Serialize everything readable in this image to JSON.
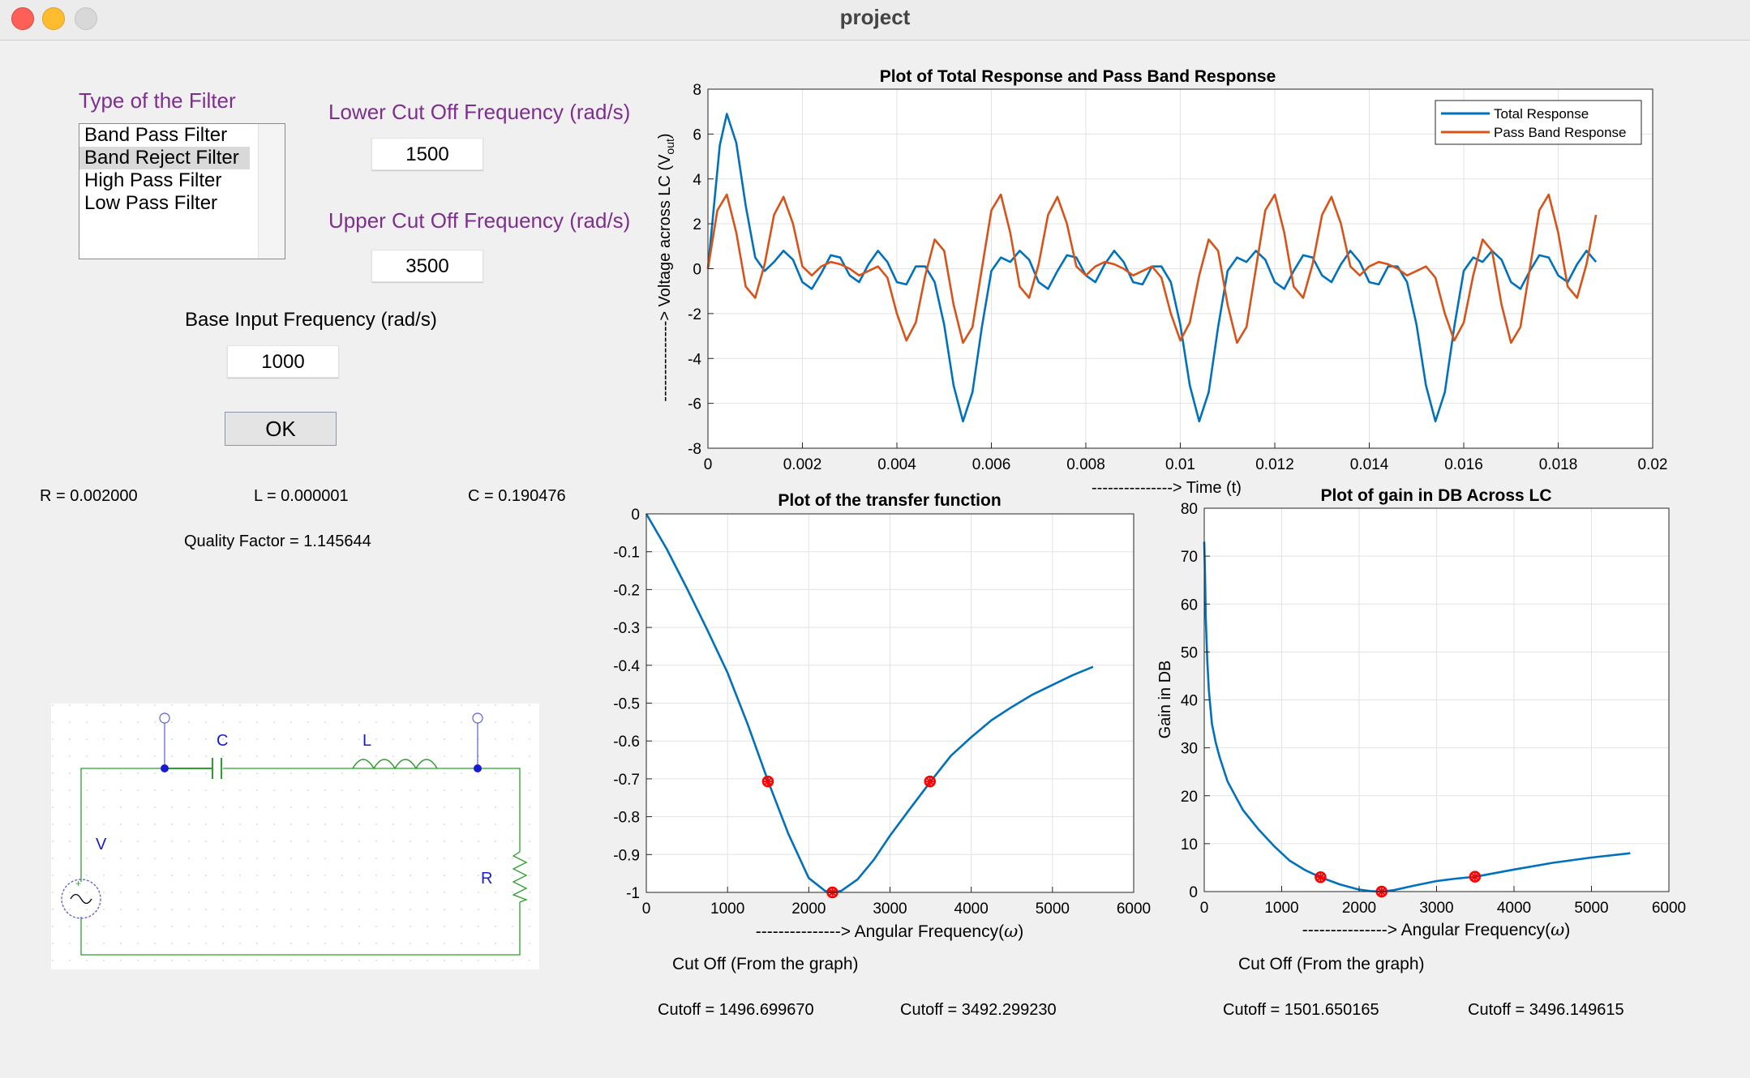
{
  "window": {
    "title": "project"
  },
  "filter_type": {
    "label": "Type of the Filter",
    "options": [
      "Band Pass Filter",
      "Band Reject Filter",
      "High Pass Filter",
      "Low Pass Filter"
    ],
    "selected": "Band Reject Filter"
  },
  "lower_cutoff": {
    "label": "Lower Cut Off Frequency (rad/s)",
    "value": "1500"
  },
  "upper_cutoff": {
    "label": "Upper Cut Off Frequency (rad/s)",
    "value": "3500"
  },
  "base_freq": {
    "label": "Base Input Frequency (rad/s)",
    "value": "1000"
  },
  "ok_button": "OK",
  "results": {
    "R": "R = 0.002000",
    "L": "L = 0.000001",
    "C": "C = 0.190476",
    "quality": "Quality Factor = 1.145644"
  },
  "circuit": {
    "c_label": "C",
    "l_label": "L",
    "v_label": "V",
    "r_label": "R"
  },
  "colors": {
    "accent_purple": "#7e2f8e",
    "series_blue": "#0072bd",
    "series_orange": "#d95319",
    "marker_red": "#ff0000"
  },
  "cutoffs": {
    "transfer_heading": "Cut Off (From the graph)",
    "transfer_cut1": "Cutoff = 1496.699670",
    "transfer_cut2": "Cutoff = 3492.299230",
    "gain_heading": "Cut Off (From the graph)",
    "gain_cut1": "Cutoff = 1501.650165",
    "gain_cut2": "Cutoff = 3496.149615"
  },
  "chart_data": [
    {
      "type": "line",
      "title": "Plot of Total Response and Pass Band Response",
      "xlabel": "---------------> Time (t)",
      "ylabel": "---------------> Voltage across LC (V",
      "ylabel_sub": "out",
      "ylabel_close": ")",
      "xlim": [
        0,
        0.02
      ],
      "ylim": [
        -8,
        8
      ],
      "xticks": [
        0,
        0.002,
        0.004,
        0.006,
        0.008,
        0.01,
        0.012,
        0.014,
        0.016,
        0.018,
        0.02
      ],
      "xtick_labels": [
        "0",
        "0.002",
        "0.004",
        "0.006",
        "0.008",
        "0.01",
        "0.012",
        "0.014",
        "0.016",
        "0.018",
        "0.02"
      ],
      "yticks": [
        -8,
        -6,
        -4,
        -2,
        0,
        2,
        4,
        6,
        8
      ],
      "ytick_labels": [
        "-8",
        "-6",
        "-4",
        "-2",
        "0",
        "2",
        "4",
        "6",
        "8"
      ],
      "grid": true,
      "legend_position": "top-right",
      "series": [
        {
          "name": "Total Response",
          "color": "#0072bd",
          "x": [
            0,
            0.00025,
            0.0004,
            0.0006,
            0.0008,
            0.001,
            0.0012,
            0.0014,
            0.0016,
            0.0018,
            0.002,
            0.0022,
            0.0024,
            0.0026,
            0.0028,
            0.003,
            0.0032,
            0.0034,
            0.0036,
            0.0038,
            0.004,
            0.0042,
            0.0044,
            0.0046,
            0.0048,
            0.005,
            0.0052,
            0.0054,
            0.0056,
            0.0058,
            0.006,
            0.0062,
            0.0064,
            0.0066,
            0.0068,
            0.007,
            0.0072,
            0.0074,
            0.0076,
            0.0078,
            0.008,
            0.0082,
            0.0084,
            0.0086,
            0.0088,
            0.009,
            0.0092,
            0.0094,
            0.0096,
            0.0098,
            0.01,
            0.0102,
            0.0104,
            0.0106,
            0.0108,
            0.011,
            0.0112,
            0.0114,
            0.0116,
            0.0118,
            0.012,
            0.0122,
            0.0124,
            0.0126,
            0.0128,
            0.013,
            0.0132,
            0.0134,
            0.0136,
            0.0138,
            0.014,
            0.0142,
            0.0144,
            0.0146,
            0.0148,
            0.015,
            0.0152,
            0.0154,
            0.0156,
            0.0158,
            0.016,
            0.0162,
            0.0164,
            0.0166,
            0.0168,
            0.017,
            0.0172,
            0.0174,
            0.0176,
            0.0178,
            0.018,
            0.0182,
            0.0184,
            0.0186,
            0.0188
          ],
          "y": [
            0,
            5.5,
            6.9,
            5.6,
            2.8,
            0.5,
            -0.1,
            0.3,
            0.8,
            0.4,
            -0.6,
            -0.9,
            -0.2,
            0.6,
            0.5,
            -0.3,
            -0.6,
            0.2,
            0.8,
            0.3,
            -0.6,
            -0.7,
            0.1,
            0.1,
            -0.6,
            -2.5,
            -5.2,
            -6.8,
            -5.5,
            -2.6,
            -0.1,
            0.5,
            0.3,
            0.8,
            0.4,
            -0.6,
            -0.9,
            -0.1,
            0.6,
            0.5,
            -0.3,
            -0.6,
            0.2,
            0.8,
            0.3,
            -0.6,
            -0.7,
            0.1,
            0.1,
            -0.6,
            -2.5,
            -5.2,
            -6.8,
            -5.5,
            -2.6,
            -0.1,
            0.5,
            0.3,
            0.8,
            0.4,
            -0.6,
            -0.9,
            -0.1,
            0.6,
            0.5,
            -0.3,
            -0.6,
            0.2,
            0.8,
            0.3,
            -0.6,
            -0.7,
            0.1,
            0.1,
            -0.6,
            -2.5,
            -5.2,
            -6.8,
            -5.5,
            -2.6,
            -0.1,
            0.5,
            0.3,
            0.8,
            0.4,
            -0.6,
            -0.9,
            -0.1,
            0.6,
            0.5,
            -0.3,
            -0.6,
            0.2,
            0.8,
            0.3
          ]
        },
        {
          "name": "Pass Band Response",
          "color": "#d95319",
          "x": [
            0,
            0.0002,
            0.0004,
            0.0006,
            0.0008,
            0.001,
            0.0012,
            0.0014,
            0.0016,
            0.0018,
            0.002,
            0.0022,
            0.0024,
            0.0026,
            0.0028,
            0.003,
            0.0032,
            0.0034,
            0.0036,
            0.0038,
            0.004,
            0.0042,
            0.0044,
            0.0046,
            0.0048,
            0.005,
            0.0052,
            0.0054,
            0.0056,
            0.0058,
            0.006,
            0.0062,
            0.0064,
            0.0066,
            0.0068,
            0.007,
            0.0072,
            0.0074,
            0.0076,
            0.0078,
            0.008,
            0.0082,
            0.0084,
            0.0086,
            0.0088,
            0.009,
            0.0092,
            0.0094,
            0.0096,
            0.0098,
            0.01,
            0.0102,
            0.0104,
            0.0106,
            0.0108,
            0.011,
            0.0112,
            0.0114,
            0.0116,
            0.0118,
            0.012,
            0.0122,
            0.0124,
            0.0126,
            0.0128,
            0.013,
            0.0132,
            0.0134,
            0.0136,
            0.0138,
            0.014,
            0.0142,
            0.0144,
            0.0146,
            0.0148,
            0.015,
            0.0152,
            0.0154,
            0.0156,
            0.0158,
            0.016,
            0.0162,
            0.0164,
            0.0166,
            0.0168,
            0.017,
            0.0172,
            0.0174,
            0.0176,
            0.0178,
            0.018,
            0.0182,
            0.0184,
            0.0186,
            0.0188
          ],
          "y": [
            0,
            2.6,
            3.3,
            1.6,
            -0.8,
            -1.3,
            0.2,
            2.4,
            3.2,
            2.0,
            0.1,
            -0.3,
            0.1,
            0.3,
            0.2,
            0.0,
            -0.3,
            -0.1,
            0.1,
            -0.4,
            -2.0,
            -3.2,
            -2.4,
            -0.3,
            1.3,
            0.8,
            -1.6,
            -3.3,
            -2.6,
            0.0,
            2.6,
            3.3,
            1.6,
            -0.8,
            -1.3,
            0.2,
            2.4,
            3.2,
            2.0,
            0.1,
            -0.3,
            0.1,
            0.3,
            0.2,
            0.0,
            -0.3,
            -0.1,
            0.1,
            -0.4,
            -2.0,
            -3.2,
            -2.4,
            -0.3,
            1.3,
            0.8,
            -1.6,
            -3.3,
            -2.6,
            0.0,
            2.6,
            3.3,
            1.6,
            -0.8,
            -1.3,
            0.2,
            2.4,
            3.2,
            2.0,
            0.1,
            -0.3,
            0.1,
            0.3,
            0.2,
            0.0,
            -0.3,
            -0.1,
            0.1,
            -0.4,
            -2.0,
            -3.2,
            -2.4,
            -0.3,
            1.3,
            0.8,
            -1.6,
            -3.3,
            -2.6,
            0.0,
            2.6,
            3.3,
            1.6,
            -0.8,
            -1.3,
            0.2,
            2.4
          ]
        }
      ]
    },
    {
      "type": "line",
      "title": "Plot of the transfer function",
      "xlabel": "---------------> Angular Frequency(",
      "xlabel_symbol": "ω",
      "xlabel_close": ")",
      "xlim": [
        0,
        6000
      ],
      "ylim": [
        -1,
        0
      ],
      "xticks": [
        0,
        1000,
        2000,
        3000,
        4000,
        5000,
        6000
      ],
      "xtick_labels": [
        "0",
        "1000",
        "2000",
        "3000",
        "4000",
        "5000",
        "6000"
      ],
      "yticks": [
        -1,
        -0.9,
        -0.8,
        -0.7,
        -0.6,
        -0.5,
        -0.4,
        -0.3,
        -0.2,
        -0.1,
        0
      ],
      "ytick_labels": [
        "-1",
        "-0.9",
        "-0.8",
        "-0.7",
        "-0.6",
        "-0.5",
        "-0.4",
        "-0.3",
        "-0.2",
        "-0.1",
        "0"
      ],
      "grid": true,
      "series": [
        {
          "color": "#0072bd",
          "x": [
            0,
            250,
            500,
            750,
            1000,
            1250,
            1500,
            1750,
            2000,
            2200,
            2291,
            2400,
            2600,
            2800,
            3000,
            3250,
            3500,
            3750,
            4000,
            4250,
            4500,
            4750,
            5000,
            5250,
            5500
          ],
          "y": [
            0,
            -0.092,
            -0.197,
            -0.306,
            -0.42,
            -0.557,
            -0.707,
            -0.846,
            -0.962,
            -0.996,
            -1.0,
            -0.996,
            -0.966,
            -0.914,
            -0.85,
            -0.778,
            -0.707,
            -0.639,
            -0.59,
            -0.545,
            -0.51,
            -0.478,
            -0.452,
            -0.426,
            -0.404
          ]
        }
      ],
      "markers": {
        "x": [
          1497,
          2291,
          3492
        ],
        "y": [
          -0.707,
          -1.0,
          -0.707
        ],
        "color": "#ff0000"
      }
    },
    {
      "type": "line",
      "title": "Plot of gain in DB Across LC",
      "xlabel": "---------------> Angular Frequency(",
      "xlabel_symbol": "ω",
      "xlabel_close": ")",
      "ylabel": "Gain in DB",
      "xlim": [
        0,
        6000
      ],
      "ylim": [
        0,
        80
      ],
      "xticks": [
        0,
        1000,
        2000,
        3000,
        4000,
        5000,
        6000
      ],
      "xtick_labels": [
        "0",
        "1000",
        "2000",
        "3000",
        "4000",
        "5000",
        "6000"
      ],
      "yticks": [
        0,
        10,
        20,
        30,
        40,
        50,
        60,
        70,
        80
      ],
      "ytick_labels": [
        "0",
        "10",
        "20",
        "30",
        "40",
        "50",
        "60",
        "70",
        "80"
      ],
      "grid": true,
      "series": [
        {
          "color": "#0072bd",
          "x": [
            0,
            10,
            20,
            40,
            60,
            100,
            150,
            200,
            300,
            400,
            500,
            700,
            900,
            1100,
            1300,
            1500,
            1750,
            2000,
            2150,
            2291,
            2450,
            2700,
            3000,
            3250,
            3500,
            4000,
            4500,
            5000,
            5500
          ],
          "y": [
            73,
            66,
            57,
            48,
            42,
            35,
            31,
            28,
            23,
            20,
            17,
            13,
            9.5,
            6.5,
            4.5,
            3.0,
            1.5,
            0.4,
            0.1,
            0,
            0.3,
            1.2,
            2.2,
            2.7,
            3.1,
            4.6,
            6.0,
            7.1,
            8.0
          ]
        }
      ],
      "markers": {
        "x": [
          1502,
          2291,
          3496
        ],
        "y": [
          3.0,
          0,
          3.1
        ],
        "color": "#ff0000"
      }
    }
  ]
}
